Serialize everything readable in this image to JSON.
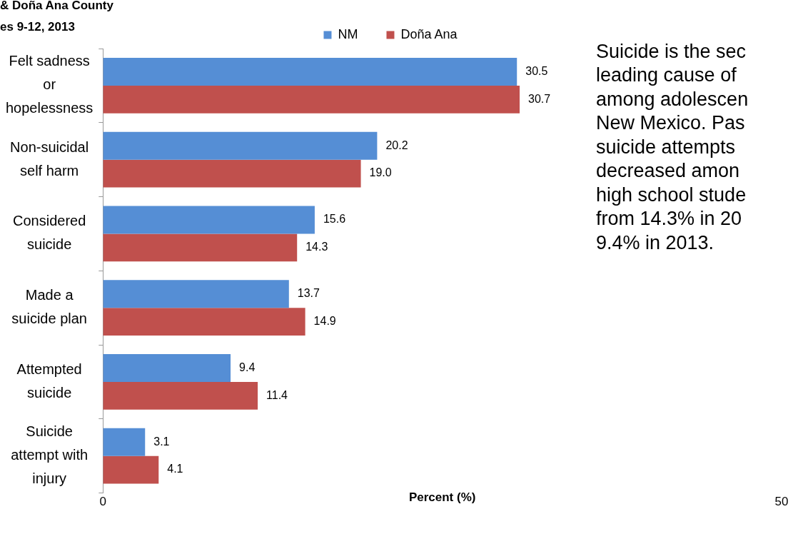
{
  "chart_data": {
    "type": "bar",
    "orientation": "horizontal",
    "title": "& Doña Ana County",
    "subtitle": "es 9-12, 2013",
    "categories": [
      "Felt sadness or hopelessness",
      "Non-suicidal self harm",
      "Considered suicide",
      "Made a suicide plan",
      "Attempted suicide",
      "Suicide attempt with injury"
    ],
    "series": [
      {
        "name": "NM",
        "color": "#558ed5",
        "values": [
          30.5,
          20.2,
          15.6,
          13.7,
          9.4,
          3.1
        ],
        "value_labels": [
          "30.5",
          "20.2",
          "15.6",
          "13.7",
          "9.4",
          "3.1"
        ]
      },
      {
        "name": "Doña Ana",
        "color": "#c0504d",
        "values": [
          30.7,
          19.0,
          14.3,
          14.9,
          11.4,
          4.1
        ],
        "value_labels": [
          "30.7",
          "19.0",
          "14.3",
          "14.9",
          "11.4",
          "4.1"
        ]
      }
    ],
    "xlabel": "Percent (%)",
    "xlim": [
      0,
      50
    ],
    "xticks": [
      0,
      50
    ],
    "grid": false,
    "legend": "top",
    "annotations": [
      "Suicide is the sec\nleading cause of \namong adolescen\nNew Mexico. Pas\nsuicide attempts \ndecreased amon\nhigh school stude\nfrom 14.3% in 20\n9.4% in 2013."
    ]
  }
}
